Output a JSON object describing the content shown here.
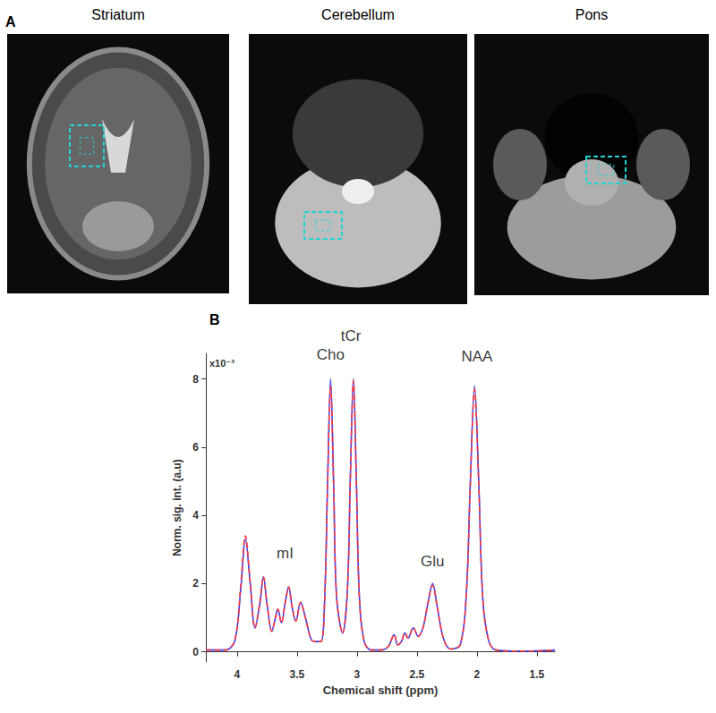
{
  "panel_a": {
    "label": "A",
    "images": [
      {
        "title": "Striatum"
      },
      {
        "title": "Cerebellum"
      },
      {
        "title": "Pons"
      }
    ]
  },
  "chart_data": {
    "type": "line",
    "panel_label": "B",
    "xlabel": "Chemical shift (ppm)",
    "ylabel": "Norm. sig. int. (a.u)",
    "y_scale_label": "x10⁻³",
    "x": [
      4.26,
      4.1,
      4.02,
      3.97,
      3.93,
      3.89,
      3.85,
      3.81,
      3.78,
      3.75,
      3.71,
      3.68,
      3.66,
      3.63,
      3.6,
      3.57,
      3.54,
      3.51,
      3.47,
      3.43,
      3.38,
      3.34,
      3.3,
      3.27,
      3.245,
      3.22,
      3.195,
      3.17,
      3.12,
      3.08,
      3.055,
      3.03,
      3.005,
      2.98,
      2.94,
      2.88,
      2.8,
      2.74,
      2.69,
      2.66,
      2.63,
      2.6,
      2.575,
      2.53,
      2.49,
      2.45,
      2.41,
      2.37,
      2.33,
      2.28,
      2.22,
      2.14,
      2.09,
      2.055,
      2.02,
      1.985,
      1.95,
      1.9,
      1.84,
      1.7,
      1.55,
      1.35
    ],
    "series": [
      {
        "color": "#2b3cff",
        "line_style": "solid",
        "values": [
          0.05,
          0.05,
          0.3,
          1.8,
          3.3,
          2.0,
          0.7,
          1.4,
          2.2,
          1.4,
          0.6,
          1.0,
          1.25,
          0.85,
          1.4,
          1.9,
          1.3,
          0.9,
          1.45,
          1.0,
          0.35,
          0.3,
          0.3,
          1.5,
          5.0,
          8.0,
          5.0,
          1.6,
          0.55,
          1.8,
          5.2,
          8.0,
          5.0,
          1.6,
          0.3,
          0.05,
          0.05,
          0.15,
          0.5,
          0.2,
          0.3,
          0.55,
          0.4,
          0.7,
          0.45,
          0.7,
          1.4,
          2.0,
          1.3,
          0.4,
          0.08,
          0.2,
          1.6,
          5.0,
          7.8,
          5.0,
          1.5,
          0.3,
          0.05,
          0.02,
          0.02,
          0.05
        ]
      },
      {
        "color": "#ff3b3b",
        "line_style": "dashed",
        "values": [
          0.05,
          0.05,
          0.32,
          1.9,
          3.4,
          2.05,
          0.7,
          1.45,
          2.2,
          1.4,
          0.6,
          1.0,
          1.25,
          0.85,
          1.4,
          1.9,
          1.3,
          0.9,
          1.45,
          1.0,
          0.35,
          0.3,
          0.3,
          1.45,
          4.9,
          7.8,
          4.9,
          1.6,
          0.55,
          1.8,
          5.1,
          7.95,
          5.0,
          1.6,
          0.3,
          0.05,
          0.05,
          0.15,
          0.5,
          0.2,
          0.3,
          0.55,
          0.4,
          0.7,
          0.45,
          0.7,
          1.4,
          1.95,
          1.3,
          0.4,
          0.08,
          0.2,
          1.6,
          4.9,
          7.7,
          4.9,
          1.5,
          0.3,
          0.05,
          0.02,
          0.02,
          0.05
        ]
      }
    ],
    "xlim": [
      4.26,
      1.35
    ],
    "xticks": [
      4,
      3.5,
      3,
      2.5,
      2,
      1.5
    ],
    "ylim": [
      -0.3,
      8.75
    ],
    "yticks": [
      0,
      2,
      4,
      6,
      8
    ],
    "grid": false,
    "annotations": [
      {
        "text": "mI",
        "x": 3.6,
        "y": 2.9
      },
      {
        "text": "Cho",
        "x": 3.22,
        "y": 8.7
      },
      {
        "text": "tCr",
        "x": 3.05,
        "y": 9.25
      },
      {
        "text": "Glu",
        "x": 2.37,
        "y": 2.65
      },
      {
        "text": "NAA",
        "x": 2.0,
        "y": 8.65
      }
    ]
  }
}
